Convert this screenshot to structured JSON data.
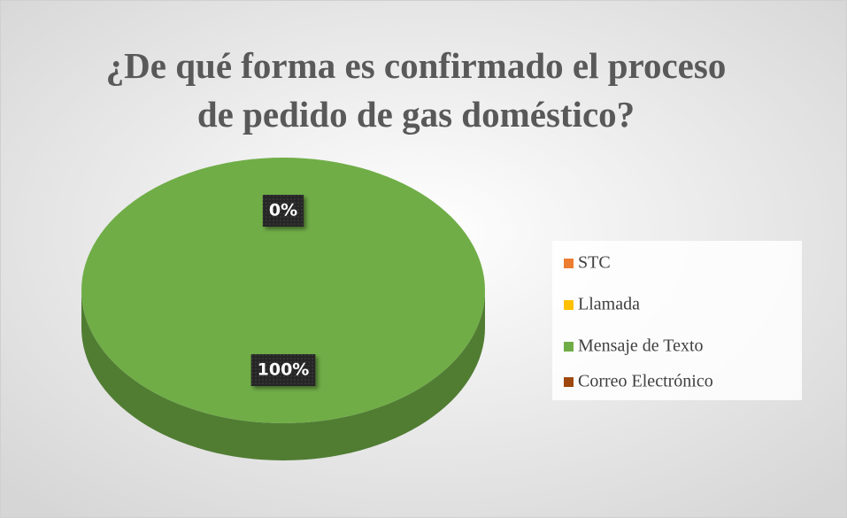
{
  "chart_data": {
    "type": "pie",
    "title": "¿De qué forma es confirmado el proceso de pedido de gas doméstico?",
    "title_lines": [
      "¿De qué forma es confirmado el proceso",
      "de pedido de gas doméstico?"
    ],
    "categories": [
      "STC",
      "Llamada",
      "Mensaje de Texto",
      "Correo Electrónico"
    ],
    "values": [
      0,
      0,
      100,
      0
    ],
    "value_labels": [
      "0%",
      null,
      "100%",
      null
    ],
    "colors": [
      "#ed7d31",
      "#ffc000",
      "#70ad47",
      "#9e480e"
    ],
    "legend": "right"
  }
}
